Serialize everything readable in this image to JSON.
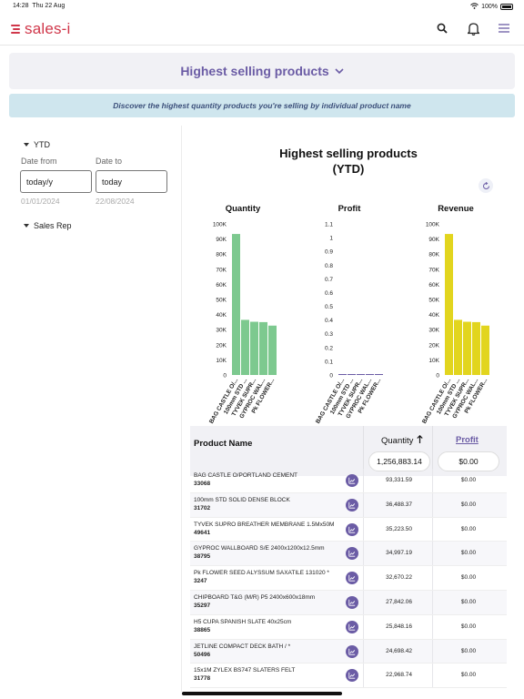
{
  "status": {
    "time": "14:28",
    "date": "Thu 22 Aug",
    "battery": "100%"
  },
  "app": {
    "logo_text": "sales-i",
    "brand_color": "#d0374a",
    "accent_color": "#6b5ca5"
  },
  "icons": {
    "search": "search-icon",
    "notifications": "bell-icon",
    "menu": "hamburger-menu-icon"
  },
  "report": {
    "title": "Highest selling products",
    "description": "Discover the highest quantity products you're selling by individual product name"
  },
  "filters": {
    "period_label": "YTD",
    "date_from_label": "Date from",
    "date_to_label": "Date to",
    "date_from_value": "today/y",
    "date_to_value": "today",
    "date_from_resolved": "01/01/2024",
    "date_to_resolved": "22/08/2024",
    "sales_rep_label": "Sales Rep"
  },
  "chart_title_line1": "Highest selling products",
  "chart_title_line2": "(YTD)",
  "chart_data": [
    {
      "type": "bar",
      "title": "Quantity",
      "categories": [
        "BAG CASTLE O/...",
        "100mm STD ...",
        "TYVEK SUPR...",
        "GYPROC WAL...",
        "Pk FLOWER..."
      ],
      "values": [
        93331.59,
        36488.37,
        35223.5,
        34997.19,
        32670.22
      ],
      "ylim": [
        0,
        100000
      ],
      "yticks": [
        "0",
        "10K",
        "20K",
        "30K",
        "40K",
        "50K",
        "60K",
        "70K",
        "80K",
        "90K",
        "100K"
      ],
      "color": "#7dc98f"
    },
    {
      "type": "bar",
      "title": "Profit",
      "categories": [
        "BAG CASTLE O/...",
        "100mm STD ...",
        "TYVEK SUPR...",
        "GYPROC WAL...",
        "Pk FLOWER..."
      ],
      "values": [
        0,
        0,
        0,
        0,
        0
      ],
      "ylim": [
        0,
        1.1
      ],
      "yticks": [
        "0",
        "0.1",
        "0.2",
        "0.3",
        "0.4",
        "0.5",
        "0.6",
        "0.7",
        "0.8",
        "0.9",
        "1",
        "1.1"
      ],
      "color": "#6b5ca5"
    },
    {
      "type": "bar",
      "title": "Revenue",
      "categories": [
        "BAG CASTLE O/...",
        "100mm STD ...",
        "TYVEK SUPR...",
        "GYPROC WAL...",
        "Pk FLOWER..."
      ],
      "values": [
        93331.59,
        36488.37,
        35223.5,
        34997.19,
        32670.22
      ],
      "ylim": [
        0,
        100000
      ],
      "yticks": [
        "0",
        "10K",
        "20K",
        "30K",
        "40K",
        "50K",
        "60K",
        "70K",
        "80K",
        "90K",
        "100K"
      ],
      "color": "#e2d51e"
    }
  ],
  "table": {
    "col_name": "Product Name",
    "col_qty": "Quantity",
    "col_profit": "Profit",
    "total_qty": "1,256,883.14",
    "total_profit": "$0.00",
    "rows": [
      {
        "name": "BAG CASTLE O/PORTLAND CEMENT",
        "code": "33068",
        "qty": "93,331.59",
        "profit": "$0.00"
      },
      {
        "name": "100mm STD SOLID DENSE BLOCK",
        "code": "31702",
        "qty": "36,488.37",
        "profit": "$0.00"
      },
      {
        "name": "TYVEK SUPRO BREATHER MEMBRANE 1.5Mx50M",
        "code": "49641",
        "qty": "35,223.50",
        "profit": "$0.00"
      },
      {
        "name": "GYPROC WALLBOARD S/E 2400x1200x12.5mm",
        "code": "38795",
        "qty": "34,997.19",
        "profit": "$0.00"
      },
      {
        "name": "Pk FLOWER SEED ALYSSUM SAXATILE 131020 *",
        "code": "3247",
        "qty": "32,670.22",
        "profit": "$0.00"
      },
      {
        "name": "CHIPBOARD T&G (M/R) P5 2400x600x18mm",
        "code": "35297",
        "qty": "27,842.06",
        "profit": "$0.00"
      },
      {
        "name": "H5 CUPA SPANISH SLATE 40x25cm",
        "code": "38865",
        "qty": "25,848.16",
        "profit": "$0.00"
      },
      {
        "name": "JETLINE COMPACT DECK BATH / *",
        "code": "50496",
        "qty": "24,698.42",
        "profit": "$0.00"
      },
      {
        "name": "15x1M ZYLEX BS747 SLATERS FELT",
        "code": "31778",
        "qty": "22,968.74",
        "profit": "$0.00"
      }
    ]
  }
}
